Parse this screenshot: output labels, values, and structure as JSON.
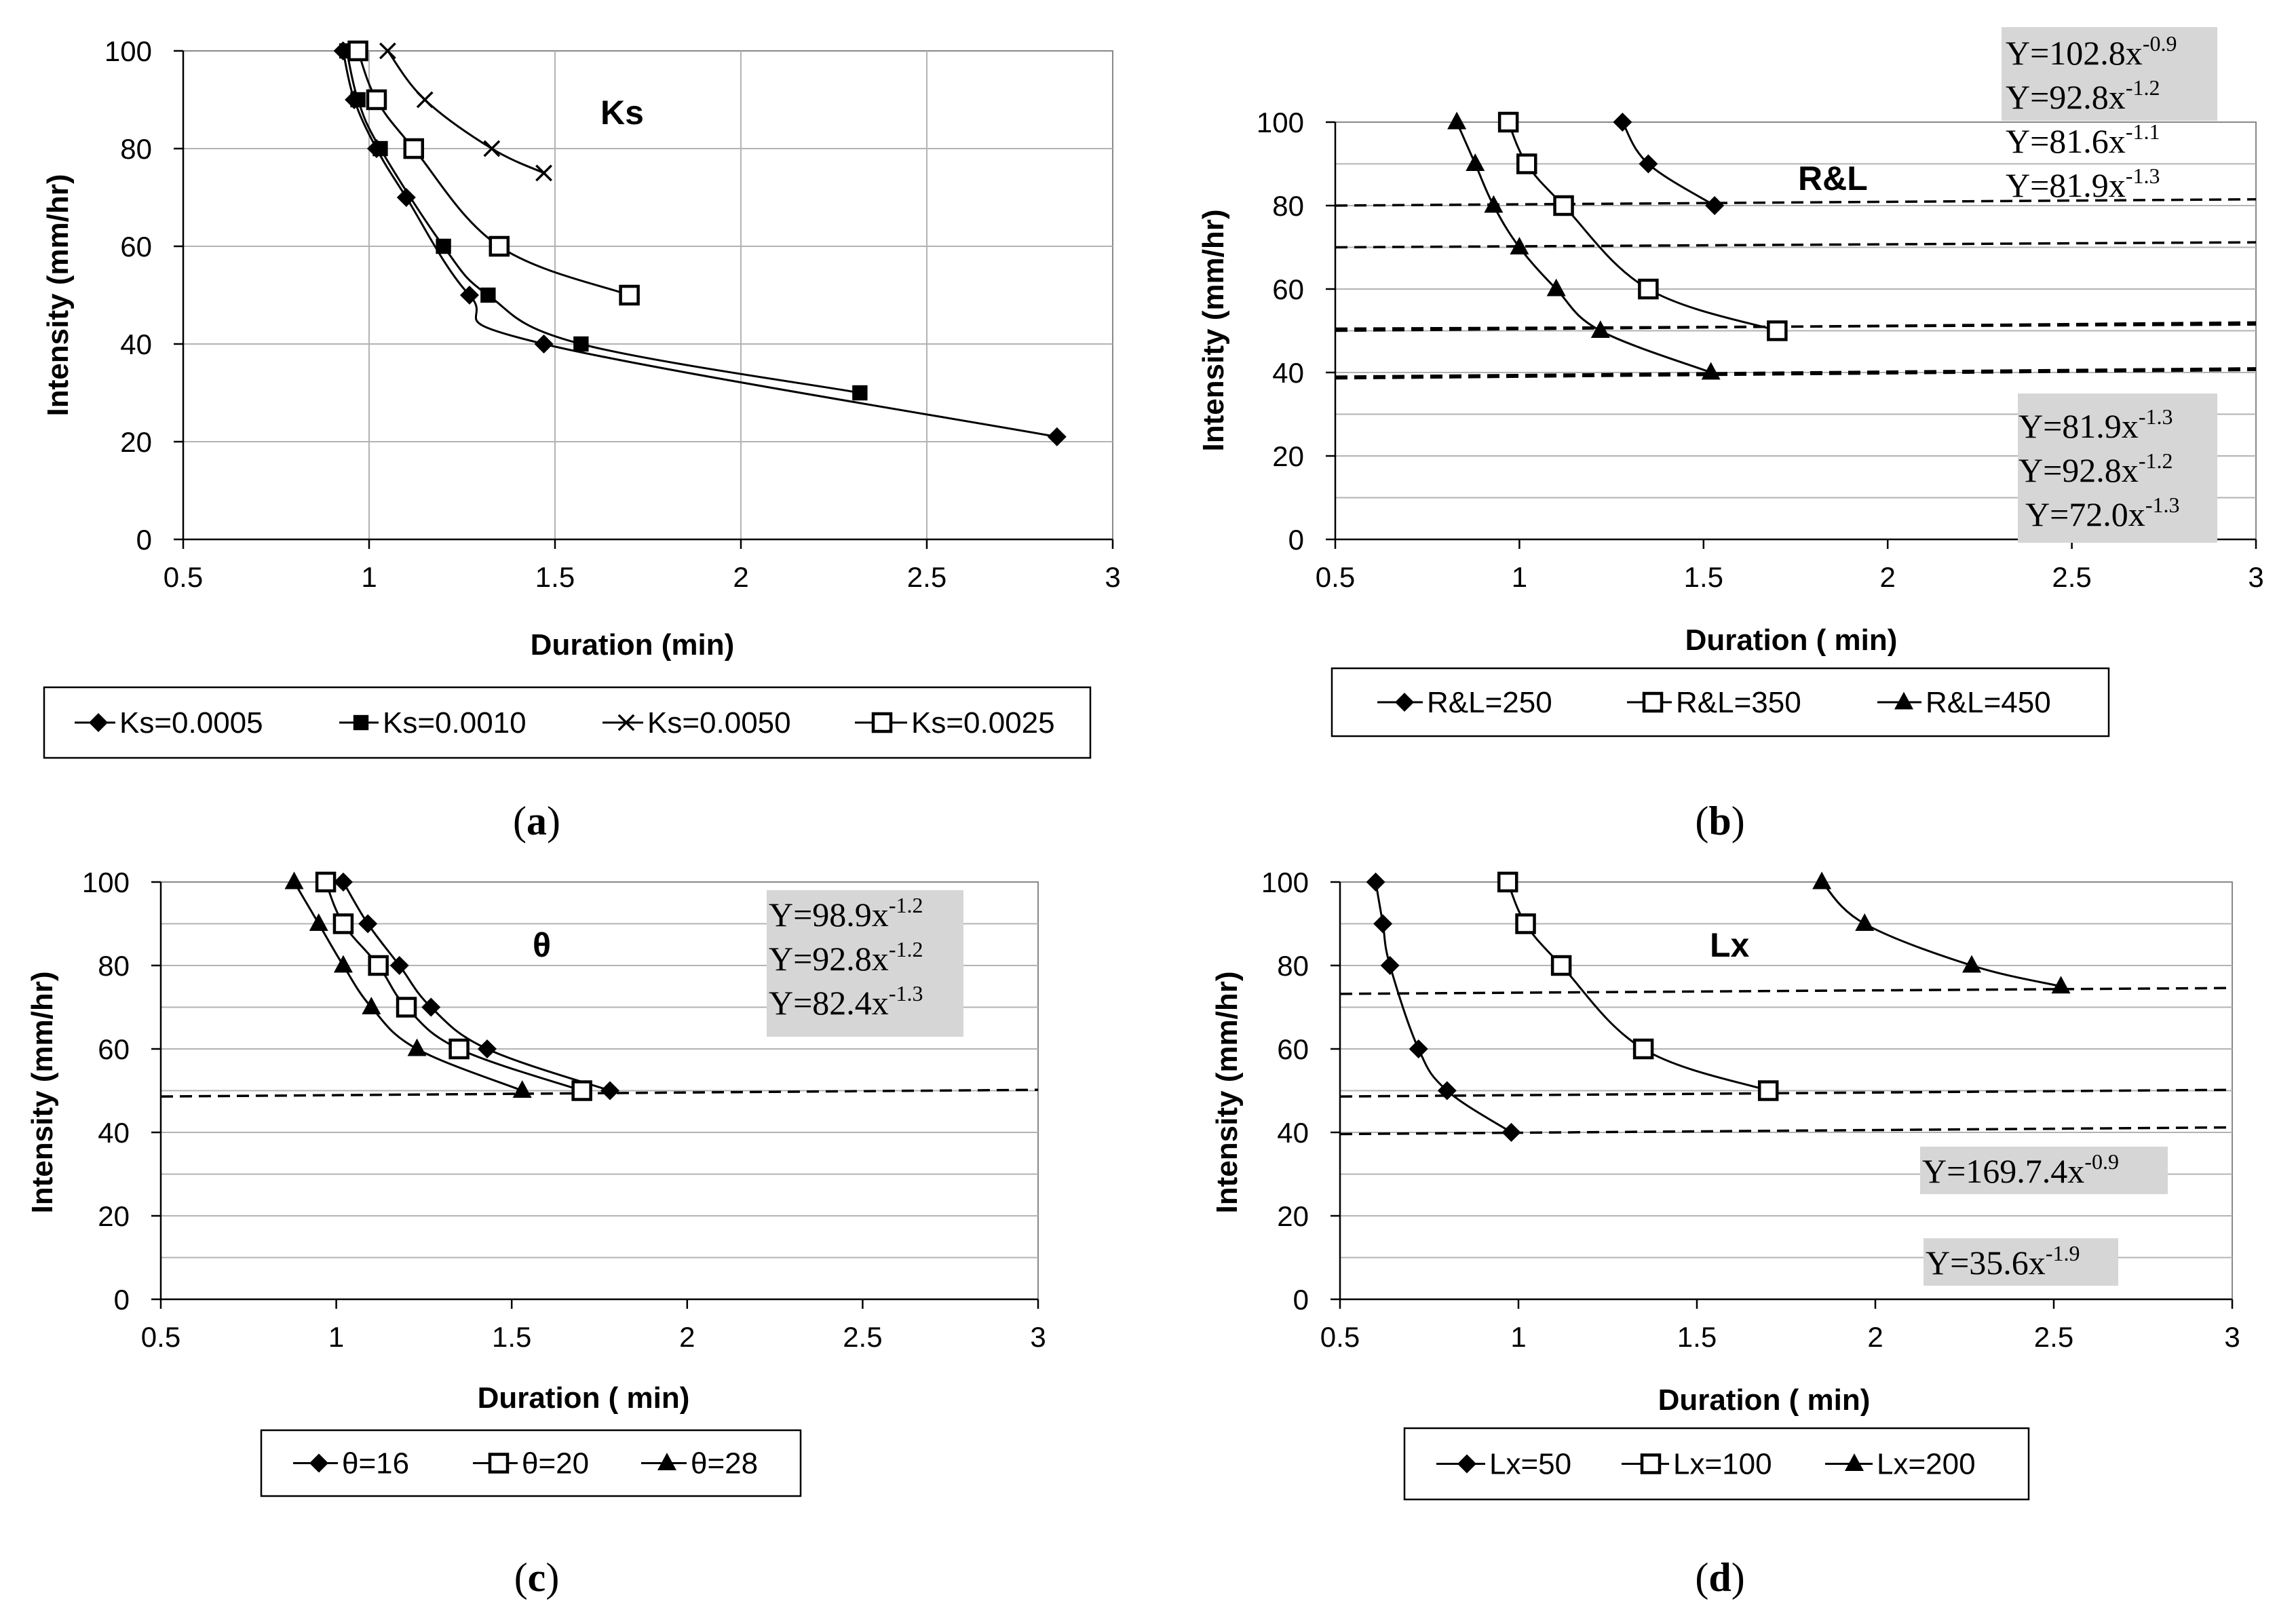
{
  "chart_data": [
    {
      "type": "line",
      "panel": "a",
      "caption": "a",
      "title": "Ks",
      "xlabel": "Duration (min)",
      "ylabel": "Intensity (mm/hr)",
      "xlim": [
        0.5,
        3
      ],
      "ylim": [
        0,
        100
      ],
      "xticks": [
        "0.5",
        "1",
        "1.5",
        "2",
        "2.5",
        "3"
      ],
      "yticks": [
        "0",
        "20",
        "40",
        "60",
        "80",
        "100"
      ],
      "series": [
        {
          "name": "Ks=0.0005",
          "marker": "diamond",
          "x": [
            0.93,
            0.96,
            1.02,
            1.1,
            1.27,
            1.47,
            2.85
          ],
          "y": [
            100,
            90,
            80,
            70,
            50,
            40,
            21
          ]
        },
        {
          "name": "Ks=0.0010",
          "marker": "square-filled",
          "x": [
            0.94,
            0.97,
            1.03,
            1.2,
            1.32,
            1.57,
            2.32
          ],
          "y": [
            100,
            90,
            80,
            60,
            50,
            40,
            30
          ]
        },
        {
          "name": "Ks=0.0050",
          "marker": "cross",
          "x": [
            1.05,
            1.15,
            1.33,
            1.47
          ],
          "y": [
            100,
            90,
            80,
            75
          ]
        },
        {
          "name": "Ks=0.0025",
          "marker": "square-open",
          "x": [
            0.97,
            1.02,
            1.12,
            1.35,
            1.7
          ],
          "y": [
            100,
            90,
            80,
            60,
            50
          ]
        }
      ],
      "dashed_lines": [],
      "equations": []
    },
    {
      "type": "line",
      "panel": "b",
      "caption": "b",
      "title": "R&L",
      "xlabel": "Duration ( min)",
      "ylabel": "Intensity (mm/hr)",
      "xlim": [
        0.5,
        3
      ],
      "ylim": [
        0,
        100
      ],
      "xticks": [
        "0.5",
        "1",
        "1.5",
        "2",
        "2.5",
        "3"
      ],
      "yticks": [
        "0",
        "20",
        "40",
        "60",
        "80",
        "100"
      ],
      "series": [
        {
          "name": "R&L=250",
          "marker": "diamond",
          "x": [
            1.28,
            1.35,
            1.53
          ],
          "y": [
            100,
            90,
            80
          ]
        },
        {
          "name": "R&L=350",
          "marker": "square-open",
          "x": [
            0.97,
            1.02,
            1.12,
            1.35,
            1.7
          ],
          "y": [
            100,
            90,
            80,
            60,
            50
          ]
        },
        {
          "name": "R&L=450",
          "marker": "triangle",
          "x": [
            0.83,
            0.88,
            0.93,
            1.0,
            1.1,
            1.22,
            1.52
          ],
          "y": [
            100,
            90,
            80,
            70,
            60,
            50,
            40
          ]
        }
      ],
      "dashed_lines": [
        [
          80,
          81.5
        ],
        [
          70,
          71.2
        ],
        [
          50,
          52
        ],
        [
          50.5,
          51.5
        ],
        [
          39,
          41
        ],
        [
          38.6,
          40.6
        ]
      ],
      "equations": [
        {
          "base": "Y=102.8x",
          "exp": "-0.9"
        },
        {
          "base": "Y=92.8x",
          "exp": "-1.2"
        },
        {
          "base": "Y=81.6x",
          "exp": "-1.1"
        },
        {
          "base": "Y=81.9x",
          "exp": "-1.3"
        },
        {
          "base": "Y=81.9x",
          "exp": "-1.3"
        },
        {
          "base": "Y=92.8x",
          "exp": "-1.2"
        },
        {
          "base": "Y=72.0x",
          "exp": "-1.3"
        }
      ]
    },
    {
      "type": "line",
      "panel": "c",
      "caption": "c",
      "title": "θ",
      "xlabel": "Duration ( min)",
      "ylabel": "Intensity (mm/hr)",
      "xlim": [
        0.5,
        3
      ],
      "ylim": [
        0,
        100
      ],
      "xticks": [
        "0.5",
        "1",
        "1.5",
        "2",
        "2.5",
        "3"
      ],
      "yticks": [
        "0",
        "20",
        "40",
        "60",
        "80",
        "100"
      ],
      "series": [
        {
          "name": "θ=16",
          "marker": "diamond",
          "x": [
            1.02,
            1.09,
            1.18,
            1.27,
            1.43,
            1.78
          ],
          "y": [
            100,
            90,
            80,
            70,
            60,
            50
          ]
        },
        {
          "name": "θ=20",
          "marker": "square-open",
          "x": [
            0.97,
            1.02,
            1.12,
            1.2,
            1.35,
            1.7
          ],
          "y": [
            100,
            90,
            80,
            70,
            60,
            50
          ]
        },
        {
          "name": "θ=28",
          "marker": "triangle",
          "x": [
            0.88,
            0.95,
            1.02,
            1.1,
            1.23,
            1.53
          ],
          "y": [
            100,
            90,
            80,
            70,
            60,
            50
          ]
        }
      ],
      "dashed_lines": [
        [
          48.6,
          50.2
        ]
      ],
      "equations": [
        {
          "base": "Y=98.9x",
          "exp": "-1.2"
        },
        {
          "base": "Y=92.8x",
          "exp": "-1.2"
        },
        {
          "base": "Y=82.4x",
          "exp": "-1.3"
        }
      ]
    },
    {
      "type": "line",
      "panel": "d",
      "caption": "d",
      "title": "Lx",
      "xlabel": "Duration ( min)",
      "ylabel": "Intensity (mm/hr)",
      "xlim": [
        0.5,
        3
      ],
      "ylim": [
        0,
        100
      ],
      "xticks": [
        "0.5",
        "1",
        "1.5",
        "2",
        "2.5",
        "3"
      ],
      "yticks": [
        "0",
        "20",
        "40",
        "60",
        "80",
        "100"
      ],
      "series": [
        {
          "name": "Lx=50",
          "marker": "diamond",
          "x": [
            0.6,
            0.62,
            0.64,
            0.72,
            0.8,
            0.98
          ],
          "y": [
            100,
            90,
            80,
            60,
            50,
            40
          ]
        },
        {
          "name": "Lx=100",
          "marker": "square-open",
          "x": [
            0.97,
            1.02,
            1.12,
            1.35,
            1.7
          ],
          "y": [
            100,
            90,
            80,
            60,
            50
          ]
        },
        {
          "name": "Lx=200",
          "marker": "triangle",
          "x": [
            1.85,
            1.97,
            2.27,
            2.52
          ],
          "y": [
            100,
            90,
            80,
            75
          ]
        }
      ],
      "dashed_lines": [
        [
          73.2,
          74.6
        ],
        [
          48.6,
          50.2
        ],
        [
          39.6,
          41.2
        ]
      ],
      "equations": [
        {
          "base": "Y=169.7.4x",
          "exp": "-0.9"
        },
        {
          "base": "Y=35.6x",
          "exp": "-1.9"
        }
      ]
    }
  ]
}
